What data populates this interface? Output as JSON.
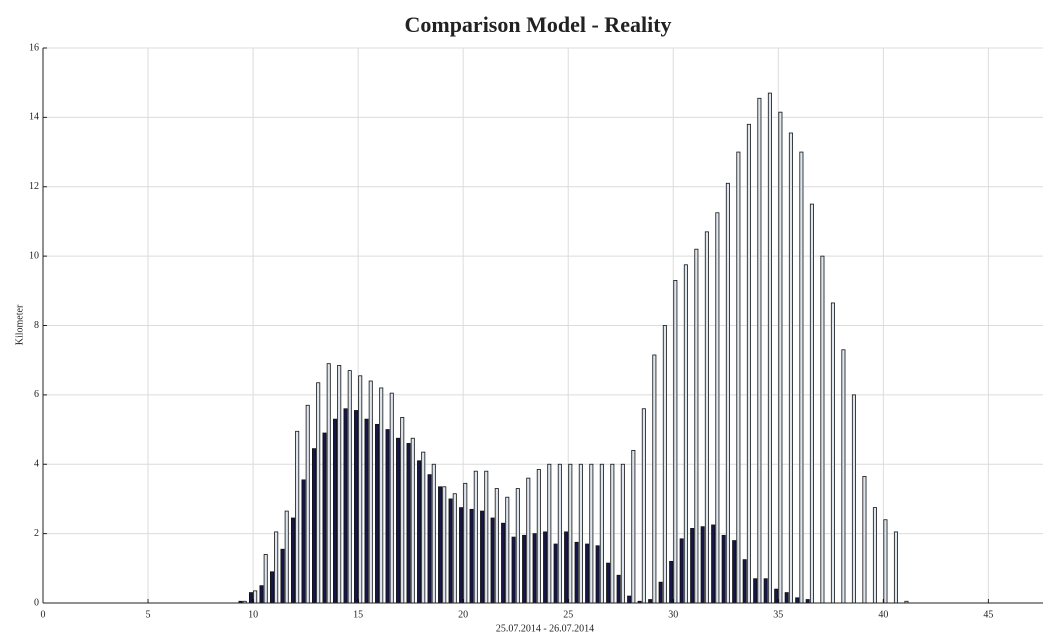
{
  "chart_data": {
    "type": "bar",
    "title": "Comparison Model - Reality",
    "xlabel": "25.07.2014 - 26.07.2014",
    "ylabel": "Kilometer",
    "x": [
      9.5,
      10,
      10.5,
      11,
      11.5,
      12,
      12.5,
      13,
      13.5,
      14,
      14.5,
      15,
      15.5,
      16,
      16.5,
      17,
      17.5,
      18,
      18.5,
      19,
      19.5,
      20,
      20.5,
      21,
      21.5,
      22,
      22.5,
      23,
      23.5,
      24,
      24.5,
      25,
      25.5,
      26,
      26.5,
      27,
      27.5,
      28,
      28.5,
      29,
      29.5,
      30,
      30.5,
      31,
      31.5,
      32,
      32.5,
      33,
      33.5,
      34,
      34.5,
      35,
      35.5,
      36,
      36.5,
      37,
      37.5,
      38,
      38.5,
      39,
      39.5,
      40,
      40.5,
      41
    ],
    "series": [
      {
        "color": "#16164a",
        "values": [
          0.05,
          0.3,
          0.5,
          0.9,
          1.55,
          2.45,
          3.55,
          4.45,
          4.9,
          5.3,
          5.6,
          5.55,
          5.3,
          5.15,
          5.0,
          4.75,
          4.6,
          4.1,
          3.7,
          3.35,
          3.0,
          2.75,
          2.7,
          2.65,
          2.45,
          2.3,
          1.9,
          1.95,
          2.0,
          2.05,
          1.7,
          2.05,
          1.75,
          1.7,
          1.65,
          1.15,
          0.8,
          0.2,
          0.05,
          0.1,
          0.6,
          1.2,
          1.85,
          2.15,
          2.2,
          2.25,
          1.95,
          1.8,
          1.25,
          0.7,
          0.7,
          0.4,
          0.3,
          0.15,
          0.1,
          0,
          0,
          0,
          0,
          0,
          0,
          0,
          0,
          0
        ]
      },
      {
        "color": "#dde5ee",
        "values": [
          0.05,
          0.35,
          1.4,
          2.05,
          2.65,
          4.95,
          5.7,
          6.35,
          6.9,
          6.85,
          6.7,
          6.55,
          6.4,
          6.2,
          6.05,
          5.35,
          4.75,
          4.35,
          4.0,
          3.35,
          3.15,
          3.45,
          3.8,
          3.8,
          3.3,
          3.05,
          3.3,
          3.6,
          3.85,
          4.0,
          4.0,
          4.0,
          4.0,
          4.0,
          4.0,
          4.0,
          4.0,
          4.4,
          5.6,
          7.15,
          8.0,
          9.3,
          9.75,
          10.2,
          10.7,
          11.25,
          12.1,
          13.0,
          13.8,
          14.55,
          14.7,
          14.15,
          13.55,
          13.0,
          11.5,
          10.0,
          8.65,
          7.3,
          6.0,
          3.65,
          2.75,
          2.4,
          2.05,
          0.05
        ]
      }
    ],
    "xlim": [
      0,
      47.6
    ],
    "xticks": [
      0,
      5,
      10,
      15,
      20,
      25,
      30,
      35,
      40,
      45
    ],
    "ylim": [
      0,
      16
    ],
    "yticks": [
      0,
      2,
      4,
      6,
      8,
      10,
      12,
      14,
      16
    ],
    "grid": true
  }
}
